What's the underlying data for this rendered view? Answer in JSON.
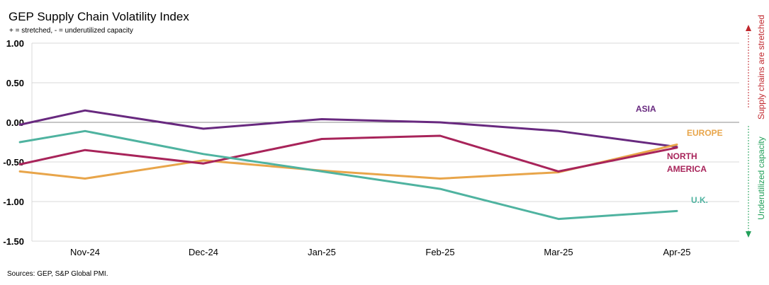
{
  "header": {
    "title": "GEP Supply Chain Volatility Index",
    "subtitle": "+ = stretched, - = underutilized capacity"
  },
  "footer": {
    "source": "Sources: GEP, S&P Global PMI."
  },
  "annotations": {
    "stretched": "Supply chains are stretched",
    "underutilized": "Underutilized capacity",
    "stretched_color": "#c0272d",
    "underutilized_color": "#22a05a"
  },
  "chart_data": {
    "type": "line",
    "title": "GEP Supply Chain Volatility Index",
    "subtitle": "+ = stretched, - = underutilized capacity",
    "categories": [
      "Nov-24",
      "Dec-24",
      "Jan-25",
      "Feb-25",
      "Mar-25",
      "Apr-25"
    ],
    "ylim": [
      -1.5,
      1.0
    ],
    "yticks": [
      1.0,
      0.5,
      0.0,
      -0.5,
      -1.0,
      -1.5
    ],
    "ytick_labels": [
      "1.00",
      "0.50",
      "0.00",
      "-0.50",
      "-1.00",
      "-1.50"
    ],
    "grid": "horizontal",
    "series": [
      {
        "name": "ASIA",
        "color": "#68297f",
        "x": [
          -0.55,
          0,
          1,
          2,
          3,
          4,
          5
        ],
        "values": [
          -0.03,
          0.15,
          -0.08,
          0.04,
          0.0,
          -0.11,
          -0.31
        ]
      },
      {
        "name": "EUROPE",
        "color": "#e8a54a",
        "x": [
          -0.55,
          0,
          1,
          2,
          3,
          4,
          5
        ],
        "values": [
          -0.62,
          -0.71,
          -0.48,
          -0.61,
          -0.71,
          -0.63,
          -0.28
        ]
      },
      {
        "name": "NORTH AMERICA",
        "label_lines": [
          "NORTH",
          "AMERICA"
        ],
        "color": "#a8245a",
        "x": [
          -0.55,
          0,
          1,
          2,
          3,
          4,
          5
        ],
        "values": [
          -0.53,
          -0.35,
          -0.52,
          -0.21,
          -0.17,
          -0.62,
          -0.32
        ]
      },
      {
        "name": "U.K.",
        "color": "#4fb3a0",
        "x": [
          -0.55,
          0,
          1,
          2,
          3,
          4,
          5
        ],
        "values": [
          -0.25,
          -0.11,
          -0.4,
          -0.62,
          -0.84,
          -1.22,
          -1.12
        ]
      }
    ]
  }
}
